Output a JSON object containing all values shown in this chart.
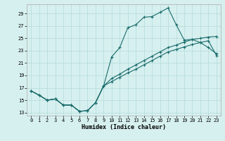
{
  "title": "",
  "xlabel": "Humidex (Indice chaleur)",
  "background_color": "#d6f0ef",
  "grid_color": "#b8dedd",
  "line_color": "#1a6b6b",
  "xlim": [
    -0.5,
    23.5
  ],
  "ylim": [
    12.5,
    30.5
  ],
  "yticks": [
    13,
    15,
    17,
    19,
    21,
    23,
    25,
    27,
    29
  ],
  "xticks": [
    0,
    1,
    2,
    3,
    4,
    5,
    6,
    7,
    8,
    9,
    10,
    11,
    12,
    13,
    14,
    15,
    16,
    17,
    18,
    19,
    20,
    21,
    22,
    23
  ],
  "line1_x": [
    0,
    1,
    2,
    3,
    4,
    5,
    6,
    7,
    8,
    9,
    10,
    11,
    12,
    13,
    14,
    15,
    16,
    17,
    18,
    19,
    20,
    21,
    22,
    23
  ],
  "line1_y": [
    16.5,
    15.8,
    15.0,
    15.2,
    14.2,
    14.2,
    13.2,
    13.3,
    14.6,
    17.3,
    22.0,
    23.5,
    26.7,
    27.2,
    28.4,
    28.5,
    29.2,
    29.9,
    27.2,
    24.7,
    24.8,
    24.3,
    23.5,
    22.5
  ],
  "line2_x": [
    0,
    1,
    2,
    3,
    4,
    5,
    6,
    7,
    8,
    9,
    10,
    11,
    12,
    13,
    14,
    15,
    16,
    17,
    18,
    19,
    20,
    21,
    22,
    23
  ],
  "line2_y": [
    16.5,
    15.8,
    15.0,
    15.2,
    14.2,
    14.2,
    13.2,
    13.3,
    14.6,
    17.3,
    18.5,
    19.2,
    20.0,
    20.7,
    21.4,
    22.1,
    22.8,
    23.5,
    23.9,
    24.4,
    24.8,
    25.0,
    25.2,
    25.3
  ],
  "line3_x": [
    0,
    1,
    2,
    3,
    4,
    5,
    6,
    7,
    8,
    9,
    10,
    11,
    12,
    13,
    14,
    15,
    16,
    17,
    18,
    19,
    20,
    21,
    22,
    23
  ],
  "line3_y": [
    16.5,
    15.8,
    15.0,
    15.2,
    14.2,
    14.2,
    13.2,
    13.3,
    14.6,
    17.3,
    18.0,
    18.7,
    19.4,
    20.0,
    20.7,
    21.4,
    22.1,
    22.8,
    23.2,
    23.6,
    24.0,
    24.3,
    24.6,
    22.2
  ],
  "xlabel_fontsize": 6,
  "tick_fontsize": 5
}
